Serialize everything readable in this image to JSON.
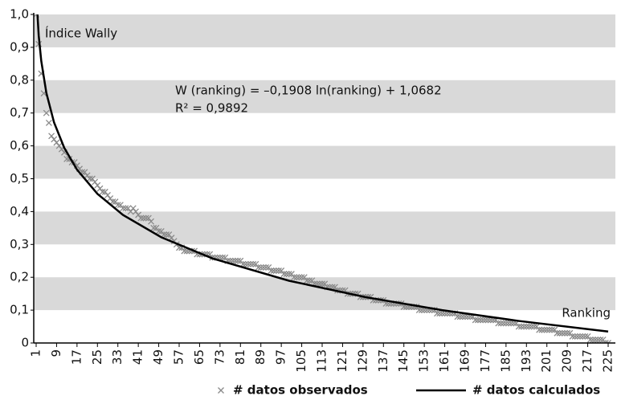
{
  "chart_data": {
    "type": "scatter",
    "ylabel": "Índice Wally",
    "xlabel": "Ranking",
    "annotations": [
      "W (ranking) = –0,1908 ln(ranking) + 1,0682",
      "R² = 0,9892"
    ],
    "xlim": [
      1,
      225
    ],
    "ylim": [
      0,
      1
    ],
    "xticks": [
      1,
      9,
      17,
      25,
      33,
      41,
      49,
      57,
      65,
      73,
      81,
      89,
      97,
      105,
      113,
      121,
      129,
      137,
      145,
      153,
      161,
      169,
      177,
      185,
      193,
      201,
      209,
      217,
      225
    ],
    "yticks": [
      0,
      {
        "value": 0.1,
        "label": "0,1"
      },
      {
        "value": 0.2,
        "label": "0,2"
      },
      {
        "value": 0.3,
        "label": "0,3"
      },
      {
        "value": 0.4,
        "label": "0,4"
      },
      {
        "value": 0.5,
        "label": "0,5"
      },
      {
        "value": 0.6,
        "label": "0,6"
      },
      {
        "value": 0.7,
        "label": "0,7"
      },
      {
        "value": 0.8,
        "label": "0,8"
      },
      {
        "value": 0.9,
        "label": "0,9"
      },
      {
        "value": 1,
        "label": "1,0"
      }
    ],
    "grid": "bands",
    "legend": "bottom",
    "x": [
      1,
      2,
      3,
      4,
      5,
      6,
      7,
      8,
      9,
      10,
      11,
      12,
      13,
      14,
      15,
      16,
      17,
      18,
      19,
      20,
      21,
      22,
      23,
      24,
      25,
      26,
      27,
      28,
      29,
      30,
      31,
      32,
      33,
      34,
      35,
      36,
      37,
      38,
      39,
      40,
      41,
      42,
      43,
      44,
      45,
      46,
      47,
      48,
      49,
      50,
      51,
      52,
      53,
      54,
      55,
      56,
      57,
      58,
      59,
      60,
      61,
      62,
      63,
      64,
      65,
      66,
      67,
      68,
      69,
      70,
      71,
      72,
      73,
      74,
      75,
      76,
      77,
      78,
      79,
      80,
      81,
      82,
      83,
      84,
      85,
      86,
      87,
      88,
      89,
      90,
      91,
      92,
      93,
      94,
      95,
      96,
      97,
      98,
      99,
      100,
      101,
      102,
      103,
      104,
      105,
      106,
      107,
      108,
      109,
      110,
      111,
      112,
      113,
      114,
      115,
      116,
      117,
      118,
      119,
      120,
      121,
      122,
      123,
      124,
      125,
      126,
      127,
      128,
      129,
      130,
      131,
      132,
      133,
      134,
      135,
      136,
      137,
      138,
      139,
      140,
      141,
      142,
      143,
      144,
      145,
      146,
      147,
      148,
      149,
      150,
      151,
      152,
      153,
      154,
      155,
      156,
      157,
      158,
      159,
      160,
      161,
      162,
      163,
      164,
      165,
      166,
      167,
      168,
      169,
      170,
      171,
      172,
      173,
      174,
      175,
      176,
      177,
      178,
      179,
      180,
      181,
      182,
      183,
      184,
      185,
      186,
      187,
      188,
      189,
      190,
      191,
      192,
      193,
      194,
      195,
      196,
      197,
      198,
      199,
      200,
      201,
      202,
      203,
      204,
      205,
      206,
      207,
      208,
      209,
      210,
      211,
      212,
      213,
      214,
      215,
      216,
      217,
      218,
      219,
      220,
      221,
      222,
      223,
      224,
      225
    ],
    "series": [
      {
        "name": "# datos observados",
        "color": "#8a8a8a",
        "marker": "x",
        "values": [
          1.0,
          0.91,
          0.82,
          0.76,
          0.7,
          0.67,
          0.63,
          0.62,
          0.61,
          0.6,
          0.59,
          0.58,
          0.56,
          0.56,
          0.55,
          0.55,
          0.54,
          0.53,
          0.52,
          0.52,
          0.51,
          0.5,
          0.5,
          0.49,
          0.48,
          0.47,
          0.46,
          0.46,
          0.45,
          0.44,
          0.43,
          0.43,
          0.42,
          0.42,
          0.41,
          0.41,
          0.41,
          0.4,
          0.41,
          0.4,
          0.39,
          0.38,
          0.38,
          0.38,
          0.38,
          0.37,
          0.35,
          0.35,
          0.34,
          0.34,
          0.33,
          0.33,
          0.33,
          0.32,
          0.31,
          0.3,
          0.29,
          0.29,
          0.28,
          0.28,
          0.28,
          0.28,
          0.28,
          0.27,
          0.27,
          0.27,
          0.27,
          0.27,
          0.27,
          0.26,
          0.26,
          0.26,
          0.26,
          0.26,
          0.26,
          0.25,
          0.25,
          0.25,
          0.25,
          0.25,
          0.25,
          0.24,
          0.24,
          0.24,
          0.24,
          0.24,
          0.24,
          0.23,
          0.23,
          0.23,
          0.23,
          0.23,
          0.22,
          0.22,
          0.22,
          0.22,
          0.22,
          0.21,
          0.21,
          0.21,
          0.21,
          0.2,
          0.2,
          0.2,
          0.2,
          0.2,
          0.19,
          0.19,
          0.19,
          0.18,
          0.18,
          0.18,
          0.18,
          0.18,
          0.17,
          0.17,
          0.17,
          0.17,
          0.16,
          0.16,
          0.16,
          0.16,
          0.15,
          0.15,
          0.15,
          0.15,
          0.15,
          0.14,
          0.14,
          0.14,
          0.14,
          0.14,
          0.13,
          0.13,
          0.13,
          0.13,
          0.13,
          0.12,
          0.12,
          0.12,
          0.12,
          0.12,
          0.12,
          0.12,
          0.11,
          0.11,
          0.11,
          0.11,
          0.11,
          0.11,
          0.1,
          0.1,
          0.1,
          0.1,
          0.1,
          0.1,
          0.1,
          0.09,
          0.09,
          0.09,
          0.09,
          0.09,
          0.09,
          0.09,
          0.09,
          0.08,
          0.08,
          0.08,
          0.08,
          0.08,
          0.08,
          0.08,
          0.07,
          0.07,
          0.07,
          0.07,
          0.07,
          0.07,
          0.07,
          0.07,
          0.07,
          0.06,
          0.06,
          0.06,
          0.06,
          0.06,
          0.06,
          0.06,
          0.06,
          0.05,
          0.05,
          0.05,
          0.05,
          0.05,
          0.05,
          0.05,
          0.05,
          0.04,
          0.04,
          0.04,
          0.04,
          0.04,
          0.04,
          0.04,
          0.03,
          0.03,
          0.03,
          0.03,
          0.03,
          0.03,
          0.02,
          0.02,
          0.02,
          0.02,
          0.02,
          0.02,
          0.02,
          0.01,
          0.01,
          0.01,
          0.01,
          0.01,
          0.01,
          0,
          0
        ]
      },
      {
        "name": "# datos calculados",
        "color": "#000000",
        "type": "line",
        "x": [
          1,
          2,
          3,
          5,
          8,
          12,
          17,
          25,
          35,
          50,
          70,
          100,
          130,
          160,
          190,
          225
        ],
        "values": [
          1.0682,
          0.9359,
          0.8586,
          0.7611,
          0.6714,
          0.5941,
          0.5276,
          0.454,
          0.3898,
          0.3218,
          0.2576,
          0.1895,
          0.1395,
          0.0999,
          0.0671,
          0.0348
        ]
      }
    ]
  }
}
